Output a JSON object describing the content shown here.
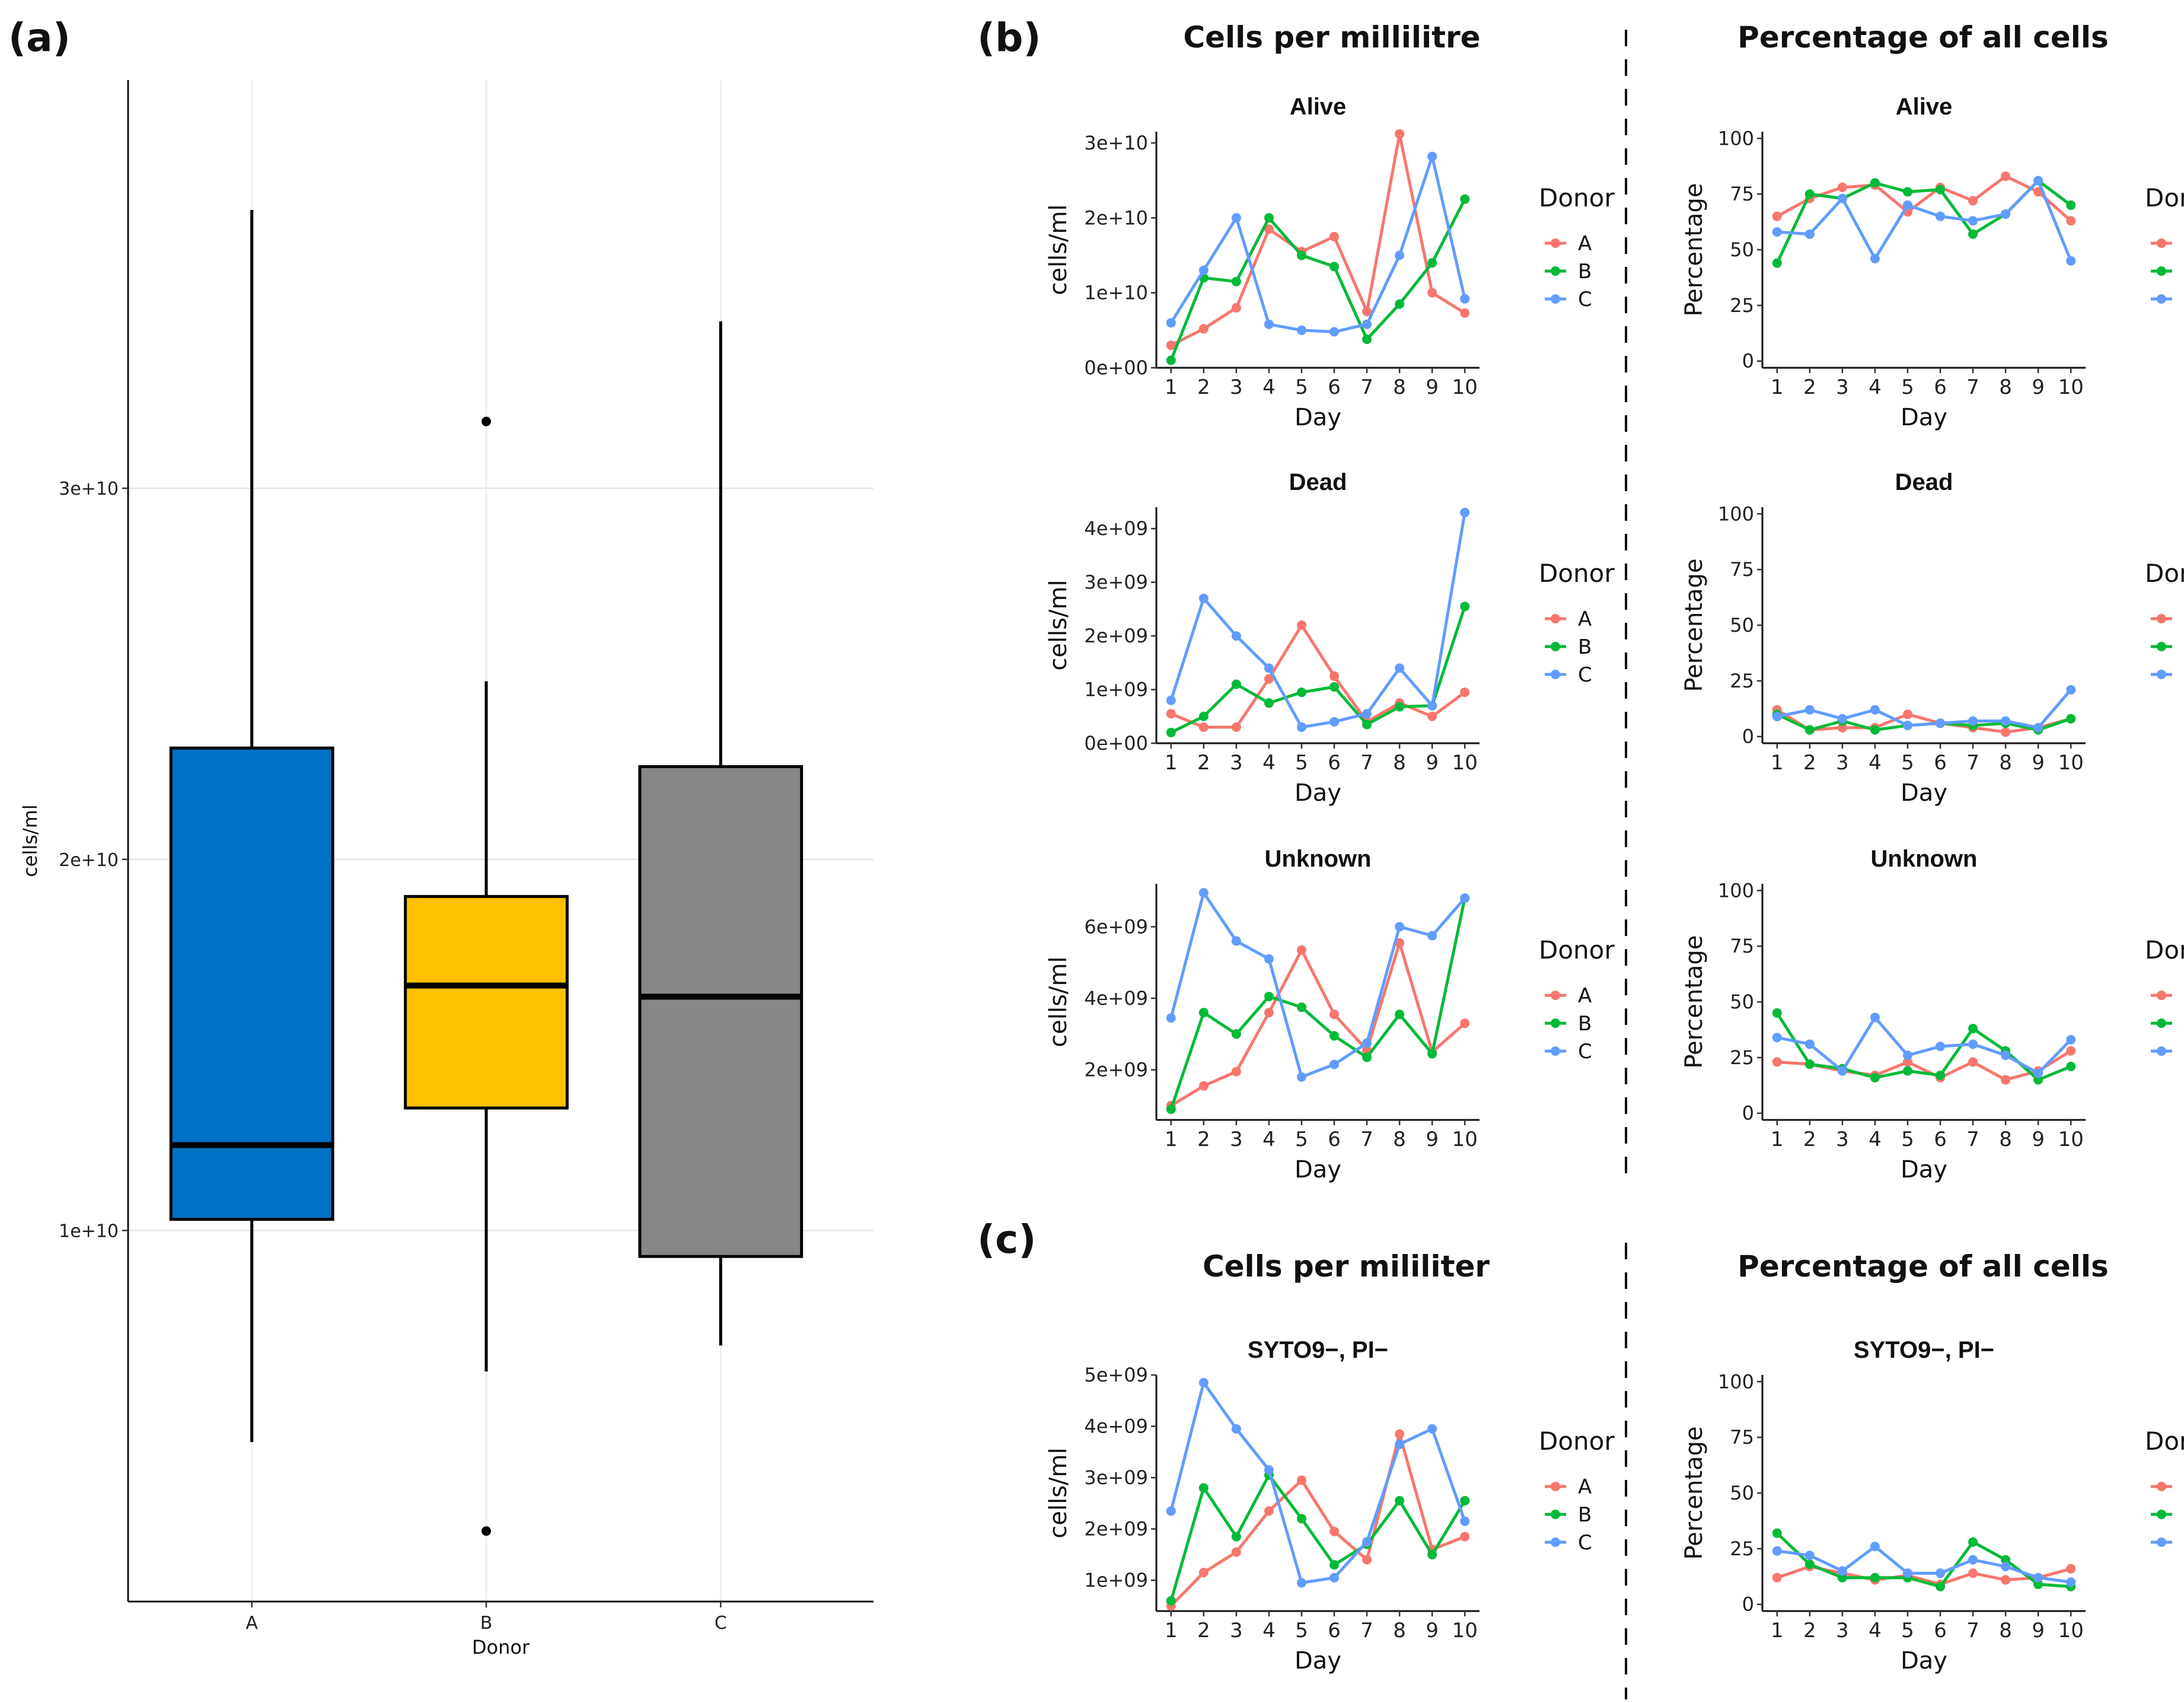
{
  "labels": {
    "panel_a": "(a)",
    "panel_b": "(b)",
    "panel_c": "(c)",
    "b_left_title": "Cells per millilitre",
    "b_right_title": "Percentage of all cells",
    "c_left_title": "Cells per mililiter",
    "c_right_title": "Percentage of all cells"
  },
  "colors": {
    "A": "#F8766D",
    "B": "#00BA38",
    "C": "#619CFF",
    "box_A": "#0072C6",
    "box_B": "#FFC000",
    "box_C": "#878787"
  },
  "chart_data": [
    {
      "id": "a",
      "type": "box",
      "title": "",
      "xlabel": "Donor",
      "ylabel": "cells/ml",
      "categories": [
        "A",
        "B",
        "C"
      ],
      "boxes": [
        {
          "name": "A",
          "whisker_low": 4300000000.0,
          "q1": 10300000000.0,
          "median": 12300000000.0,
          "q3": 23000000000.0,
          "whisker_high": 37500000000.0,
          "outliers": []
        },
        {
          "name": "B",
          "whisker_low": 6200000000.0,
          "q1": 13300000000.0,
          "median": 16600000000.0,
          "q3": 19000000000.0,
          "whisker_high": 24800000000.0,
          "outliers": [
            1900000000.0,
            31800000000.0
          ]
        },
        {
          "name": "C",
          "whisker_low": 6900000000.0,
          "q1": 9300000000.0,
          "median": 16300000000.0,
          "q3": 22500000000.0,
          "whisker_high": 34500000000.0,
          "outliers": []
        }
      ],
      "ylim": [
        0,
        41000000000.0
      ],
      "yticks": [
        10000000000.0,
        20000000000.0,
        30000000000.0
      ],
      "ytick_labels": [
        "1e+10",
        "2e+10",
        "3e+10"
      ]
    },
    {
      "id": "b-alive-ml",
      "type": "line",
      "title": "Alive",
      "xlabel": "Day",
      "ylabel": "cells/ml",
      "x": [
        1,
        2,
        3,
        4,
        5,
        6,
        7,
        8,
        9,
        10
      ],
      "series": [
        {
          "name": "A",
          "values": [
            3000000000.0,
            5200000000.0,
            8000000000.0,
            18500000000.0,
            15500000000.0,
            17500000000.0,
            7500000000.0,
            31200000000.0,
            10000000000.0,
            7300000000.0
          ]
        },
        {
          "name": "B",
          "values": [
            1000000000.0,
            12000000000.0,
            11500000000.0,
            20000000000.0,
            15000000000.0,
            13500000000.0,
            3800000000.0,
            8500000000.0,
            14000000000.0,
            22500000000.0
          ]
        },
        {
          "name": "C",
          "values": [
            6000000000.0,
            13000000000.0,
            20000000000.0,
            5800000000.0,
            5000000000.0,
            4800000000.0,
            5800000000.0,
            15000000000.0,
            28200000000.0,
            9200000000.0
          ]
        }
      ],
      "ylim": [
        0,
        31500000000.0
      ],
      "yticks": [
        0,
        10000000000.0,
        20000000000.0,
        30000000000.0
      ],
      "ytick_labels": [
        "0e+00",
        "1e+10",
        "2e+10",
        "3e+10"
      ],
      "legend_title": "Donor"
    },
    {
      "id": "b-alive-pct",
      "type": "line",
      "title": "Alive",
      "xlabel": "Day",
      "ylabel": "Percentage",
      "x": [
        1,
        2,
        3,
        4,
        5,
        6,
        7,
        8,
        9,
        10
      ],
      "series": [
        {
          "name": "A",
          "values": [
            65,
            73,
            78,
            79,
            67,
            78,
            72,
            83,
            76,
            63
          ]
        },
        {
          "name": "B",
          "values": [
            44,
            75,
            73,
            80,
            76,
            77,
            57,
            66,
            81,
            70
          ]
        },
        {
          "name": "C",
          "values": [
            58,
            57,
            73,
            46,
            70,
            65,
            63,
            66,
            81,
            45
          ]
        }
      ],
      "ylim": [
        -3,
        103
      ],
      "yticks": [
        0,
        25,
        50,
        75,
        100
      ],
      "ytick_labels": [
        "0",
        "25",
        "50",
        "75",
        "100"
      ],
      "legend_title": "Donor"
    },
    {
      "id": "b-dead-ml",
      "type": "line",
      "title": "Dead",
      "xlabel": "Day",
      "ylabel": "cells/ml",
      "x": [
        1,
        2,
        3,
        4,
        5,
        6,
        7,
        8,
        9,
        10
      ],
      "series": [
        {
          "name": "A",
          "values": [
            550000000.0,
            300000000.0,
            300000000.0,
            1200000000.0,
            2200000000.0,
            1250000000.0,
            400000000.0,
            750000000.0,
            500000000.0,
            950000000.0
          ]
        },
        {
          "name": "B",
          "values": [
            200000000.0,
            500000000.0,
            1100000000.0,
            750000000.0,
            950000000.0,
            1050000000.0,
            350000000.0,
            680000000.0,
            700000000.0,
            2550000000.0
          ]
        },
        {
          "name": "C",
          "values": [
            800000000.0,
            2700000000.0,
            2000000000.0,
            1400000000.0,
            300000000.0,
            400000000.0,
            550000000.0,
            1400000000.0,
            700000000.0,
            4300000000.0
          ]
        }
      ],
      "ylim": [
        0,
        4400000000.0
      ],
      "yticks": [
        0,
        1000000000.0,
        2000000000.0,
        3000000000.0,
        4000000000.0
      ],
      "ytick_labels": [
        "0e+00",
        "1e+09",
        "2e+09",
        "3e+09",
        "4e+09"
      ],
      "legend_title": "Donor"
    },
    {
      "id": "b-dead-pct",
      "type": "line",
      "title": "Dead",
      "xlabel": "Day",
      "ylabel": "Percentage",
      "x": [
        1,
        2,
        3,
        4,
        5,
        6,
        7,
        8,
        9,
        10
      ],
      "series": [
        {
          "name": "A",
          "values": [
            12,
            3,
            4,
            4,
            10,
            6,
            4,
            2,
            4,
            8
          ]
        },
        {
          "name": "B",
          "values": [
            10,
            3,
            7,
            3,
            5,
            6,
            5,
            6,
            3,
            8
          ]
        },
        {
          "name": "C",
          "values": [
            9,
            12,
            8,
            12,
            5,
            6,
            7,
            7,
            4,
            21
          ]
        }
      ],
      "ylim": [
        -3,
        103
      ],
      "yticks": [
        0,
        25,
        50,
        75,
        100
      ],
      "ytick_labels": [
        "0",
        "25",
        "50",
        "75",
        "100"
      ],
      "legend_title": "Donor"
    },
    {
      "id": "b-unknown-ml",
      "type": "line",
      "title": "Unknown",
      "xlabel": "Day",
      "ylabel": "cells/ml",
      "x": [
        1,
        2,
        3,
        4,
        5,
        6,
        7,
        8,
        9,
        10
      ],
      "series": [
        {
          "name": "A",
          "values": [
            1000000000.0,
            1550000000.0,
            1950000000.0,
            3600000000.0,
            5350000000.0,
            3550000000.0,
            2550000000.0,
            5550000000.0,
            2500000000.0,
            3300000000.0
          ]
        },
        {
          "name": "B",
          "values": [
            900000000.0,
            3600000000.0,
            3000000000.0,
            4050000000.0,
            3750000000.0,
            2950000000.0,
            2350000000.0,
            3550000000.0,
            2450000000.0,
            6800000000.0
          ]
        },
        {
          "name": "C",
          "values": [
            3450000000.0,
            6950000000.0,
            5600000000.0,
            5100000000.0,
            1800000000.0,
            2150000000.0,
            2750000000.0,
            6000000000.0,
            5750000000.0,
            6800000000.0
          ]
        }
      ],
      "ylim": [
        600000000.0,
        7200000000.0
      ],
      "yticks": [
        2000000000.0,
        4000000000.0,
        6000000000.0
      ],
      "ytick_labels": [
        "2e+09",
        "4e+09",
        "6e+09"
      ],
      "legend_title": "Donor"
    },
    {
      "id": "b-unknown-pct",
      "type": "line",
      "title": "Unknown",
      "xlabel": "Day",
      "ylabel": "Percentage",
      "x": [
        1,
        2,
        3,
        4,
        5,
        6,
        7,
        8,
        9,
        10
      ],
      "series": [
        {
          "name": "A",
          "values": [
            23,
            22,
            19,
            17,
            23,
            16,
            23,
            15,
            19,
            28
          ]
        },
        {
          "name": "B",
          "values": [
            45,
            22,
            20,
            16,
            19,
            17,
            38,
            28,
            15,
            21
          ]
        },
        {
          "name": "C",
          "values": [
            34,
            31,
            19,
            43,
            26,
            30,
            31,
            26,
            18,
            33
          ]
        }
      ],
      "ylim": [
        -3,
        103
      ],
      "yticks": [
        0,
        25,
        50,
        75,
        100
      ],
      "ytick_labels": [
        "0",
        "25",
        "50",
        "75",
        "100"
      ],
      "legend_title": "Donor"
    },
    {
      "id": "c-syto-ml",
      "type": "line",
      "title": "SYTO9−, PI−",
      "xlabel": "Day",
      "ylabel": "cells/ml",
      "x": [
        1,
        2,
        3,
        4,
        5,
        6,
        7,
        8,
        9,
        10
      ],
      "series": [
        {
          "name": "A",
          "values": [
            500000000.0,
            1150000000.0,
            1550000000.0,
            2350000000.0,
            2950000000.0,
            1950000000.0,
            1400000000.0,
            3850000000.0,
            1600000000.0,
            1850000000.0
          ]
        },
        {
          "name": "B",
          "values": [
            600000000.0,
            2800000000.0,
            1850000000.0,
            3050000000.0,
            2200000000.0,
            1300000000.0,
            1700000000.0,
            2550000000.0,
            1500000000.0,
            2550000000.0
          ]
        },
        {
          "name": "C",
          "values": [
            2350000000.0,
            4850000000.0,
            3950000000.0,
            3150000000.0,
            950000000.0,
            1050000000.0,
            1750000000.0,
            3650000000.0,
            3950000000.0,
            2150000000.0
          ]
        }
      ],
      "ylim": [
        400000000.0,
        5000000000.0
      ],
      "yticks": [
        1000000000.0,
        2000000000.0,
        3000000000.0,
        4000000000.0,
        5000000000.0
      ],
      "ytick_labels": [
        "1e+09",
        "2e+09",
        "3e+09",
        "4e+09",
        "5e+09"
      ],
      "legend_title": "Donor"
    },
    {
      "id": "c-syto-pct",
      "type": "line",
      "title": "SYTO9−, PI−",
      "xlabel": "Day",
      "ylabel": "Percentage",
      "x": [
        1,
        2,
        3,
        4,
        5,
        6,
        7,
        8,
        9,
        10
      ],
      "series": [
        {
          "name": "A",
          "values": [
            12,
            17,
            14,
            11,
            13,
            9,
            14,
            11,
            12,
            16
          ]
        },
        {
          "name": "B",
          "values": [
            32,
            18,
            12,
            12,
            12,
            8,
            28,
            20,
            9,
            8
          ]
        },
        {
          "name": "C",
          "values": [
            24,
            22,
            15,
            26,
            14,
            14,
            20,
            17,
            12,
            10
          ]
        }
      ],
      "ylim": [
        -3,
        103
      ],
      "yticks": [
        0,
        25,
        50,
        75,
        100
      ],
      "ytick_labels": [
        "0",
        "25",
        "50",
        "75",
        "100"
      ],
      "legend_title": "Donor"
    }
  ]
}
